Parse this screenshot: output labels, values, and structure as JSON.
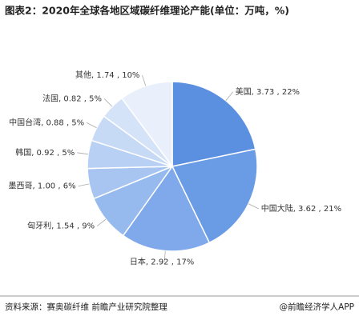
{
  "chart_data": {
    "type": "pie",
    "title": "图表2：2020年全球各地区域碳纤维理论产能(单位：万吨，%)",
    "categories": [
      "美国",
      "中国大陆",
      "日本",
      "匈牙利",
      "墨西哥",
      "韩国",
      "中国台湾",
      "法国",
      "其他"
    ],
    "values": [
      3.73,
      3.62,
      2.92,
      1.54,
      1.0,
      0.92,
      0.88,
      0.82,
      1.74
    ],
    "value_labels": [
      "美国, 3.73 , 22%",
      "中国大陆, 3.62 , 21%",
      "日本, 2.92 , 17%",
      "匈牙利, 1.54 , 9%",
      "墨西哥, 1.00 , 6%",
      "韩国, 0.92 , 5%",
      "中国台湾, 0.88 , 5%",
      "法国, 0.82 , 5%",
      "其他, 1.74 , 10%"
    ],
    "colors": [
      "#5b8fdf",
      "#6a9be5",
      "#7fa9ea",
      "#96b9ee",
      "#a8c5f1",
      "#b8d0f3",
      "#c6daf6",
      "#d4e3f8",
      "#e9f0fb"
    ]
  },
  "footer": {
    "source": "资料来源：赛奥碳纤维 前瞻产业研究院整理",
    "brand": "@前瞻经济学人APP"
  }
}
